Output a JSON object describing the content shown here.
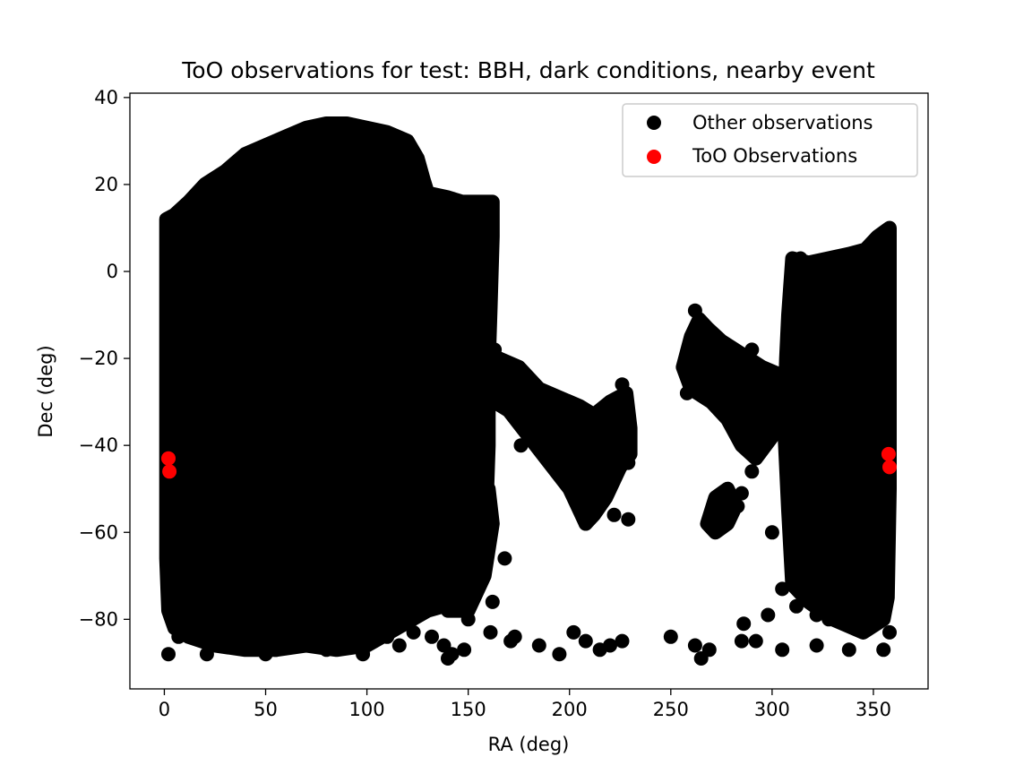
{
  "chart_data": {
    "type": "scatter",
    "title": "ToO observations for test: BBH, dark conditions, nearby event",
    "xlabel": "RA (deg)",
    "ylabel": "Dec (deg)",
    "xlim": [
      -17,
      377
    ],
    "ylim": [
      -96,
      41
    ],
    "xticks": [
      0,
      50,
      100,
      150,
      200,
      250,
      300,
      350
    ],
    "yticks": [
      -80,
      -60,
      -40,
      -20,
      0,
      20,
      40
    ],
    "grid": false,
    "legend_position": "top-right",
    "series": [
      {
        "name": "Other observations",
        "color": "#000000",
        "regions": [
          {
            "kind": "block",
            "polygon": [
              [
                1,
                -66
              ],
              [
                1,
                12
              ],
              [
                5,
                13
              ],
              [
                12,
                16
              ],
              [
                20,
                20
              ],
              [
                30,
                23
              ],
              [
                40,
                27
              ],
              [
                50,
                29
              ],
              [
                60,
                31
              ],
              [
                70,
                33
              ],
              [
                80,
                34
              ],
              [
                90,
                34
              ],
              [
                100,
                33
              ],
              [
                110,
                32
              ],
              [
                120,
                30
              ],
              [
                125,
                26
              ],
              [
                128,
                21
              ],
              [
                130,
                18
              ],
              [
                140,
                17
              ],
              [
                147,
                16
              ],
              [
                155,
                16
              ],
              [
                162,
                16
              ],
              [
                162,
                8
              ],
              [
                161,
                -8
              ],
              [
                160,
                -22
              ],
              [
                160,
                -40
              ],
              [
                159,
                -54
              ],
              [
                159,
                -62
              ],
              [
                155,
                -70
              ],
              [
                145,
                -76
              ],
              [
                130,
                -78
              ],
              [
                115,
                -82
              ],
              [
                100,
                -86
              ],
              [
                85,
                -87
              ],
              [
                70,
                -86
              ],
              [
                55,
                -87
              ],
              [
                40,
                -87
              ],
              [
                25,
                -86
              ],
              [
                12,
                -84
              ],
              [
                5,
                -82
              ],
              [
                2,
                -78
              ]
            ]
          },
          {
            "kind": "block",
            "polygon": [
              [
                308,
                -10
              ],
              [
                310,
                3
              ],
              [
                318,
                2
              ],
              [
                328,
                3
              ],
              [
                338,
                4
              ],
              [
                346,
                5
              ],
              [
                352,
                8
              ],
              [
                358,
                10
              ],
              [
                358,
                -20
              ],
              [
                358,
                -50
              ],
              [
                357,
                -75
              ],
              [
                355,
                -80
              ],
              [
                345,
                -83
              ],
              [
                330,
                -80
              ],
              [
                318,
                -76
              ],
              [
                310,
                -72
              ],
              [
                308,
                -55
              ],
              [
                306,
                -35
              ],
              [
                307,
                -20
              ]
            ]
          },
          {
            "kind": "cluster",
            "polygon": [
              [
                165,
                -20
              ],
              [
                175,
                -22
              ],
              [
                185,
                -27
              ],
              [
                195,
                -29
              ],
              [
                205,
                -31
              ],
              [
                212,
                -33
              ],
              [
                220,
                -30
              ],
              [
                228,
                -28
              ],
              [
                230,
                -36
              ],
              [
                230,
                -42
              ],
              [
                225,
                -45
              ],
              [
                218,
                -52
              ],
              [
                212,
                -56
              ],
              [
                208,
                -58
              ],
              [
                200,
                -50
              ],
              [
                190,
                -44
              ],
              [
                180,
                -38
              ],
              [
                170,
                -32
              ],
              [
                163,
                -30
              ]
            ]
          },
          {
            "kind": "cluster",
            "polygon": [
              [
                256,
                -22
              ],
              [
                260,
                -15
              ],
              [
                264,
                -11
              ],
              [
                268,
                -13
              ],
              [
                275,
                -16
              ],
              [
                285,
                -19
              ],
              [
                295,
                -22
              ],
              [
                305,
                -24
              ],
              [
                306,
                -30
              ],
              [
                300,
                -38
              ],
              [
                292,
                -43
              ],
              [
                285,
                -40
              ],
              [
                278,
                -34
              ],
              [
                270,
                -30
              ],
              [
                260,
                -27
              ]
            ]
          },
          {
            "kind": "cluster",
            "polygon": [
              [
                140,
                -62
              ],
              [
                145,
                -55
              ],
              [
                152,
                -50
              ],
              [
                160,
                -50
              ],
              [
                162,
                -58
              ],
              [
                158,
                -70
              ],
              [
                150,
                -78
              ],
              [
                140,
                -78
              ]
            ]
          },
          {
            "kind": "cluster",
            "polygon": [
              [
                268,
                -58
              ],
              [
                272,
                -52
              ],
              [
                278,
                -50
              ],
              [
                282,
                -54
              ],
              [
                278,
                -58
              ],
              [
                272,
                -60
              ]
            ]
          }
        ],
        "points": [
          {
            "x": 2,
            "y": -88
          },
          {
            "x": 7,
            "y": -84
          },
          {
            "x": 21,
            "y": -88
          },
          {
            "x": 50,
            "y": -88
          },
          {
            "x": 55,
            "y": -87
          },
          {
            "x": 80,
            "y": -87
          },
          {
            "x": 88,
            "y": -86
          },
          {
            "x": 98,
            "y": -88
          },
          {
            "x": 110,
            "y": -84
          },
          {
            "x": 116,
            "y": -86
          },
          {
            "x": 123,
            "y": -83
          },
          {
            "x": 132,
            "y": -84
          },
          {
            "x": 138,
            "y": -86
          },
          {
            "x": 140,
            "y": -89
          },
          {
            "x": 142,
            "y": -88
          },
          {
            "x": 148,
            "y": -87
          },
          {
            "x": 161,
            "y": -83
          },
          {
            "x": 171,
            "y": -85
          },
          {
            "x": 173,
            "y": -84
          },
          {
            "x": 185,
            "y": -86
          },
          {
            "x": 195,
            "y": -88
          },
          {
            "x": 202,
            "y": -83
          },
          {
            "x": 208,
            "y": -85
          },
          {
            "x": 215,
            "y": -87
          },
          {
            "x": 220,
            "y": -86
          },
          {
            "x": 226,
            "y": -85
          },
          {
            "x": 250,
            "y": -84
          },
          {
            "x": 262,
            "y": -86
          },
          {
            "x": 265,
            "y": -89
          },
          {
            "x": 269,
            "y": -87
          },
          {
            "x": 285,
            "y": -85
          },
          {
            "x": 286,
            "y": -81
          },
          {
            "x": 292,
            "y": -85
          },
          {
            "x": 298,
            "y": -79
          },
          {
            "x": 305,
            "y": -87
          },
          {
            "x": 312,
            "y": -77
          },
          {
            "x": 322,
            "y": -86
          },
          {
            "x": 338,
            "y": -87
          },
          {
            "x": 355,
            "y": -87
          },
          {
            "x": 358,
            "y": -83
          },
          {
            "x": 140,
            "y": -75
          },
          {
            "x": 150,
            "y": -80
          },
          {
            "x": 162,
            "y": -76
          },
          {
            "x": 168,
            "y": -66
          },
          {
            "x": 163,
            "y": -18
          },
          {
            "x": 176,
            "y": -40
          },
          {
            "x": 208,
            "y": -58
          },
          {
            "x": 222,
            "y": -56
          },
          {
            "x": 229,
            "y": -57
          },
          {
            "x": 229,
            "y": -44
          },
          {
            "x": 226,
            "y": -26
          },
          {
            "x": 262,
            "y": -9
          },
          {
            "x": 258,
            "y": -28
          },
          {
            "x": 270,
            "y": -57
          },
          {
            "x": 273,
            "y": -52
          },
          {
            "x": 279,
            "y": -55
          },
          {
            "x": 283,
            "y": -54
          },
          {
            "x": 285,
            "y": -51
          },
          {
            "x": 290,
            "y": -18
          },
          {
            "x": 290,
            "y": -46
          },
          {
            "x": 300,
            "y": -60
          },
          {
            "x": 305,
            "y": -73
          },
          {
            "x": 310,
            "y": -66
          },
          {
            "x": 314,
            "y": 3
          },
          {
            "x": 322,
            "y": -79
          },
          {
            "x": 328,
            "y": -80
          }
        ]
      },
      {
        "name": "ToO Observations",
        "color": "#ff0000",
        "points": [
          {
            "x": 2,
            "y": -43
          },
          {
            "x": 2.5,
            "y": -46
          },
          {
            "x": 357.5,
            "y": -42
          },
          {
            "x": 358,
            "y": -45
          }
        ]
      }
    ]
  }
}
